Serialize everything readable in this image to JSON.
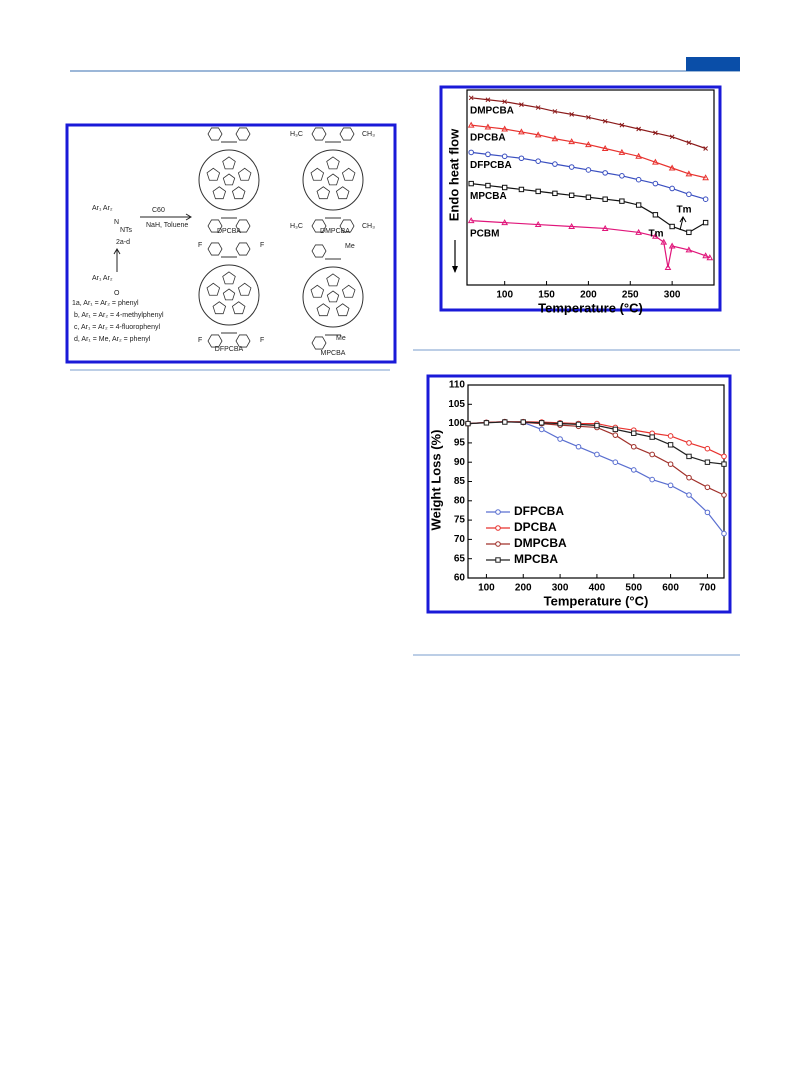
{
  "scheme": {
    "reactant_top": "Ar₁  Ar₂",
    "hydrazone_n": "N",
    "hydrazone_nts": "NTs",
    "reagent_top": "C60",
    "reagent_bottom": "NaH, Toluene",
    "compound_label": "2a-d",
    "ketone_top": "Ar₁  Ar₂",
    "ketone_o": "O",
    "legend": [
      "1a, Ar₁ = Ar₂ = phenyl",
      "b, Ar₁ = Ar₂ = 4-methylphenyl",
      "c, Ar₁ = Ar₂ = 4-fluorophenyl",
      "d, Ar₁ = Me, Ar₂ = phenyl"
    ],
    "products": [
      "DPCBA",
      "DMPCBA",
      "DFPCBA",
      "MPCBA"
    ],
    "substituents": {
      "h3c": "H₃C",
      "ch3": "CH₃",
      "f": "F",
      "me": "Me"
    }
  },
  "chart_data": [
    {
      "type": "line",
      "xlabel": "Temperature (°C)",
      "ylabel": "Endo heat flow",
      "xlim": [
        55,
        350
      ],
      "ylim": [
        0,
        100
      ],
      "xticks": [
        100,
        150,
        200,
        250,
        300
      ],
      "legend": "inline",
      "annotations": [
        "Tm",
        "Tm"
      ],
      "series": [
        {
          "name": "DMPCBA",
          "color": "#8b1a1a",
          "marker": "x",
          "x": [
            60,
            80,
            100,
            120,
            140,
            160,
            180,
            200,
            220,
            240,
            260,
            280,
            300,
            320,
            340
          ],
          "values": [
            96,
            95,
            94,
            92.5,
            91,
            89,
            87.5,
            86,
            84,
            82,
            80,
            78,
            76,
            73,
            70
          ]
        },
        {
          "name": "DPCBA",
          "color": "#e8322e",
          "marker": "triangle",
          "x": [
            60,
            80,
            100,
            120,
            140,
            160,
            180,
            200,
            220,
            240,
            260,
            280,
            300,
            320,
            340
          ],
          "values": [
            82,
            81,
            80,
            78.5,
            77,
            75,
            73.5,
            72,
            70,
            68,
            66,
            63,
            60,
            57,
            55
          ]
        },
        {
          "name": "DFPCBA",
          "color": "#3a4fc0",
          "marker": "circle",
          "x": [
            60,
            80,
            100,
            120,
            140,
            160,
            180,
            200,
            220,
            240,
            260,
            280,
            300,
            320,
            340
          ],
          "values": [
            68,
            67,
            66,
            65,
            63.5,
            62,
            60.5,
            59,
            57.5,
            56,
            54,
            52,
            49.5,
            46.5,
            44
          ]
        },
        {
          "name": "MPCBA",
          "color": "#111111",
          "marker": "square",
          "x": [
            60,
            80,
            100,
            120,
            140,
            160,
            180,
            200,
            220,
            240,
            260,
            280,
            300,
            320,
            340
          ],
          "values": [
            52,
            51,
            50,
            49,
            48,
            47,
            46,
            45,
            44,
            43,
            41,
            36,
            30,
            27,
            32
          ]
        },
        {
          "name": "PCBM",
          "color": "#e0157a",
          "marker": "triangle",
          "x": [
            60,
            100,
            140,
            180,
            220,
            260,
            280,
            290,
            295,
            300,
            320,
            340,
            345
          ],
          "values": [
            33,
            32,
            31,
            30,
            29,
            27,
            25,
            22,
            9,
            20,
            18,
            15,
            14
          ]
        }
      ]
    },
    {
      "type": "line",
      "xlabel": "Temperature (°C)",
      "ylabel": "Weight Loss (%)",
      "xlim": [
        50,
        745
      ],
      "ylim": [
        60,
        110
      ],
      "xticks": [
        100,
        200,
        300,
        400,
        500,
        600,
        700
      ],
      "yticks": [
        60,
        65,
        70,
        75,
        80,
        85,
        90,
        95,
        100,
        105,
        110
      ],
      "legend": "lower left",
      "series": [
        {
          "name": "DFPCBA",
          "color": "#5a6fd0",
          "marker": "circle",
          "x": [
            50,
            100,
            150,
            200,
            250,
            300,
            350,
            400,
            450,
            500,
            550,
            600,
            650,
            700,
            745
          ],
          "values": [
            100,
            100.3,
            100.5,
            100.3,
            98.5,
            96,
            94,
            92,
            90,
            88,
            85.5,
            84,
            81.5,
            77,
            71.5
          ]
        },
        {
          "name": "DPCBA",
          "color": "#e8322e",
          "marker": "circle",
          "x": [
            50,
            100,
            150,
            200,
            250,
            300,
            350,
            400,
            450,
            500,
            550,
            600,
            650,
            700,
            745
          ],
          "values": [
            100,
            100.3,
            100.5,
            100.5,
            100.4,
            100.2,
            100,
            100,
            99,
            98.3,
            97.5,
            96.8,
            95,
            93.5,
            91.5
          ]
        },
        {
          "name": "DMPCBA",
          "color": "#a0302a",
          "marker": "circle",
          "x": [
            50,
            100,
            150,
            200,
            250,
            300,
            350,
            400,
            450,
            500,
            550,
            600,
            650,
            700,
            745
          ],
          "values": [
            100,
            100.3,
            100.5,
            100.3,
            100,
            99.6,
            99.3,
            99,
            97,
            94,
            92,
            89.5,
            86,
            83.5,
            81.5
          ]
        },
        {
          "name": "MPCBA",
          "color": "#222222",
          "marker": "square",
          "x": [
            50,
            100,
            150,
            200,
            250,
            300,
            350,
            400,
            450,
            500,
            550,
            600,
            650,
            700,
            745
          ],
          "values": [
            100,
            100.2,
            100.4,
            100.4,
            100.2,
            100,
            99.8,
            99.5,
            98.5,
            97.5,
            96.5,
            94.5,
            91.5,
            90,
            89.5
          ]
        }
      ]
    }
  ]
}
